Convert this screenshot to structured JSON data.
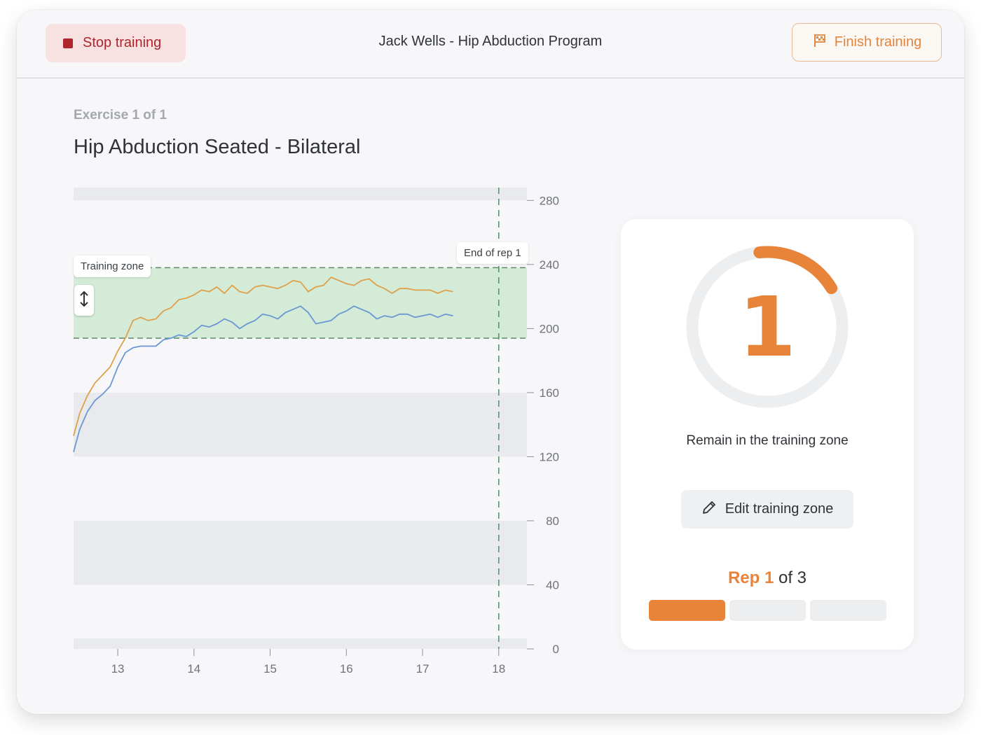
{
  "topbar": {
    "stop_label": "Stop training",
    "program_title": "Jack Wells - Hip Abduction Program",
    "finish_label": "Finish training"
  },
  "exercise": {
    "counter": "Exercise 1 of 1",
    "title": "Hip Abduction  Seated - Bilateral"
  },
  "chart_data": {
    "type": "line",
    "x_ticks": [
      "13",
      "14",
      "15",
      "16",
      "17",
      "18"
    ],
    "y_ticks": [
      "280",
      "240",
      "200",
      "160",
      "120",
      "80",
      "40",
      "0"
    ],
    "xlim": [
      12.42,
      18.37
    ],
    "ylim": [
      0,
      288
    ],
    "training_zone": {
      "label": "Training zone",
      "low": 194,
      "high": 238
    },
    "rep_marker": {
      "label": "End of rep 1",
      "x": 18.0
    },
    "series": [
      {
        "color": "#e0a04a",
        "points": [
          [
            12.42,
            133
          ],
          [
            12.5,
            147
          ],
          [
            12.6,
            158
          ],
          [
            12.7,
            166
          ],
          [
            12.8,
            171
          ],
          [
            12.9,
            176
          ],
          [
            13.0,
            186
          ],
          [
            13.1,
            194
          ],
          [
            13.2,
            205
          ],
          [
            13.3,
            207
          ],
          [
            13.4,
            205
          ],
          [
            13.5,
            206
          ],
          [
            13.6,
            211
          ],
          [
            13.7,
            213
          ],
          [
            13.8,
            218
          ],
          [
            13.9,
            219
          ],
          [
            14.0,
            221
          ],
          [
            14.1,
            224
          ],
          [
            14.2,
            223
          ],
          [
            14.3,
            226
          ],
          [
            14.4,
            222
          ],
          [
            14.5,
            227
          ],
          [
            14.6,
            223
          ],
          [
            14.7,
            222
          ],
          [
            14.8,
            226
          ],
          [
            14.9,
            227
          ],
          [
            15.0,
            226
          ],
          [
            15.1,
            225
          ],
          [
            15.2,
            227
          ],
          [
            15.3,
            230
          ],
          [
            15.4,
            229
          ],
          [
            15.5,
            223
          ],
          [
            15.6,
            226
          ],
          [
            15.7,
            227
          ],
          [
            15.8,
            232
          ],
          [
            15.9,
            230
          ],
          [
            16.0,
            228
          ],
          [
            16.1,
            227
          ],
          [
            16.2,
            230
          ],
          [
            16.3,
            231
          ],
          [
            16.4,
            227
          ],
          [
            16.5,
            225
          ],
          [
            16.6,
            222
          ],
          [
            16.7,
            225
          ],
          [
            16.8,
            225
          ],
          [
            16.9,
            224
          ],
          [
            17.0,
            224
          ],
          [
            17.1,
            224
          ],
          [
            17.2,
            222
          ],
          [
            17.3,
            224
          ],
          [
            17.4,
            223
          ]
        ]
      },
      {
        "color": "#6b97d3",
        "points": [
          [
            12.42,
            123
          ],
          [
            12.5,
            137
          ],
          [
            12.6,
            148
          ],
          [
            12.7,
            155
          ],
          [
            12.8,
            159
          ],
          [
            12.9,
            164
          ],
          [
            13.0,
            176
          ],
          [
            13.1,
            185
          ],
          [
            13.2,
            188
          ],
          [
            13.3,
            189
          ],
          [
            13.4,
            189
          ],
          [
            13.5,
            189
          ],
          [
            13.6,
            193
          ],
          [
            13.7,
            194
          ],
          [
            13.8,
            196
          ],
          [
            13.9,
            195
          ],
          [
            14.0,
            198
          ],
          [
            14.1,
            202
          ],
          [
            14.2,
            201
          ],
          [
            14.3,
            203
          ],
          [
            14.4,
            206
          ],
          [
            14.5,
            204
          ],
          [
            14.6,
            200
          ],
          [
            14.7,
            203
          ],
          [
            14.8,
            205
          ],
          [
            14.9,
            209
          ],
          [
            15.0,
            208
          ],
          [
            15.1,
            206
          ],
          [
            15.2,
            210
          ],
          [
            15.3,
            212
          ],
          [
            15.4,
            214
          ],
          [
            15.5,
            210
          ],
          [
            15.6,
            203
          ],
          [
            15.7,
            204
          ],
          [
            15.8,
            205
          ],
          [
            15.9,
            209
          ],
          [
            16.0,
            211
          ],
          [
            16.1,
            214
          ],
          [
            16.2,
            212
          ],
          [
            16.3,
            210
          ],
          [
            16.4,
            206
          ],
          [
            16.5,
            208
          ],
          [
            16.6,
            207
          ],
          [
            16.7,
            209
          ],
          [
            16.8,
            209
          ],
          [
            16.9,
            207
          ],
          [
            17.0,
            208
          ],
          [
            17.1,
            209
          ],
          [
            17.2,
            207
          ],
          [
            17.3,
            209
          ],
          [
            17.4,
            208
          ]
        ]
      }
    ]
  },
  "panel": {
    "countdown": "1",
    "countdown_progress": 0.18,
    "instruction": "Remain in the training zone",
    "edit_label": "Edit training zone",
    "rep_prefix": "Rep",
    "rep_current": "1",
    "rep_suffix": "of 3",
    "rep_total": 3,
    "rep_done": 1
  },
  "colors": {
    "accent": "#e8843a",
    "stop": "#b0252c",
    "zone_fill": "#d3ebd7",
    "zone_border": "#5f8a6a"
  },
  "icons": {
    "stop": "stop-square-icon",
    "finish": "flag-icon",
    "edit": "pencil-icon",
    "drag": "vertical-resize-icon"
  }
}
